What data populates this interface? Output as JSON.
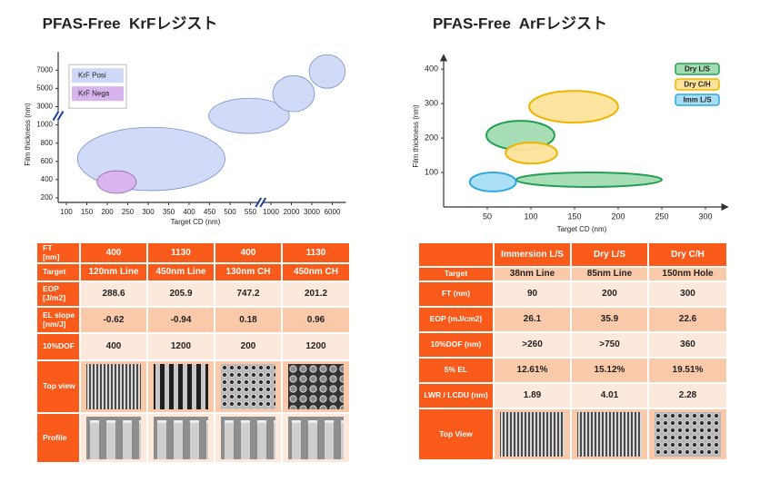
{
  "chart_data": [
    {
      "type": "ellipse",
      "title": "PFAS-Free  KrFレジスト",
      "x_label": "Target CD (nm)",
      "y_label": "Film thickness (nm)",
      "axis_break": true,
      "xlim": [
        80,
        8000
      ],
      "ylim": [
        150,
        9000
      ],
      "xticks": [
        100,
        150,
        200,
        250,
        300,
        350,
        400,
        450,
        500,
        550,
        1000,
        2000,
        3000,
        6000
      ],
      "yticks": [
        200,
        400,
        600,
        800,
        1000,
        3000,
        5000,
        7000
      ],
      "legend": "upper left",
      "series": [
        {
          "name": "KrF Posi",
          "color": "#cfd8f6",
          "edge_color": "#7b8fcc",
          "regions": [
            {
              "x": [
                127,
                488
              ],
              "y": [
                280,
                974
              ]
            },
            {
              "x": [
                448,
                1900
              ],
              "y": [
                906,
                3920
              ]
            },
            {
              "x": [
                1090,
                3390
              ],
              "y": [
                2440,
                6400
              ]
            },
            {
              "x": [
                2870,
                7900
              ],
              "y": [
                5020,
                8700
              ]
            }
          ]
        },
        {
          "name": "KrF Nega",
          "color": "#d9b3ee",
          "edge_color": "#8c63b5",
          "regions": [
            {
              "x": [
                175,
                271
              ],
              "y": [
                250,
                498
              ]
            }
          ]
        }
      ]
    },
    {
      "type": "ellipse",
      "title": "PFAS-Free  ArFレジスト",
      "x_label": "Target CD (nm)",
      "y_label": "Film thickness (nm)",
      "axis_break": false,
      "xlim": [
        0,
        325
      ],
      "ylim": [
        0,
        440
      ],
      "xticks": [
        50,
        100,
        150,
        200,
        250,
        300
      ],
      "yticks": [
        100,
        200,
        300,
        400
      ],
      "legend": "upper right",
      "series": [
        {
          "name": "Dry L/S",
          "color": "#a3dcb2",
          "edge_color": "#22a050",
          "regions": [
            {
              "x": [
                49,
                127
              ],
              "y": [
                166,
                250
              ]
            },
            {
              "x": [
                83,
                250
              ],
              "y": [
                58,
                100
              ]
            }
          ]
        },
        {
          "name": "Dry C/H",
          "color": "#fde39a",
          "edge_color": "#f0b400",
          "regions": [
            {
              "x": [
                98,
                200
              ],
              "y": [
                245,
                337
              ]
            },
            {
              "x": [
                71,
                130
              ],
              "y": [
                126,
                187
              ]
            }
          ]
        },
        {
          "name": "Imm L/S",
          "color": "#a8def5",
          "edge_color": "#2aa8e0",
          "regions": [
            {
              "x": [
                30,
                83
              ],
              "y": [
                45,
                100
              ]
            }
          ]
        }
      ]
    }
  ],
  "tables": [
    {
      "rows": [
        [
          "FT\n[nm]",
          "400",
          "1130",
          "400",
          "1130"
        ],
        [
          "Target",
          "120nm Line",
          "450nm Line",
          "130nm CH",
          "450nm CH"
        ],
        [
          "EOP\n[J/m2]",
          "288.6",
          "205.9",
          "747.2",
          "201.2"
        ],
        [
          "EL slope\n[nm/J]",
          "-0.62",
          "-0.94",
          "0.18",
          "0.96"
        ],
        [
          "10%DOF",
          "400",
          "1200",
          "200",
          "1200"
        ],
        [
          "Top view"
        ],
        [
          "Profile"
        ]
      ]
    },
    {
      "rows": [
        [
          null,
          "Immersion L/S",
          "Dry L/S",
          "Dry C/H"
        ],
        [
          "Target",
          "38nm Line",
          "85nm Line",
          "150nm Hole"
        ],
        [
          "FT (nm)",
          "90",
          "200",
          "300"
        ],
        [
          "EOP (mJ/cm2)",
          "26.1",
          "35.9",
          "22.6"
        ],
        [
          "10%DOF (nm)",
          ">260",
          ">750",
          "360"
        ],
        [
          "5% EL",
          "12.61%",
          "15.12%",
          "19.51%"
        ],
        [
          "LWR / LCDU (nm)",
          "1.89",
          "4.01",
          "2.28"
        ],
        [
          "Top View"
        ]
      ]
    }
  ]
}
